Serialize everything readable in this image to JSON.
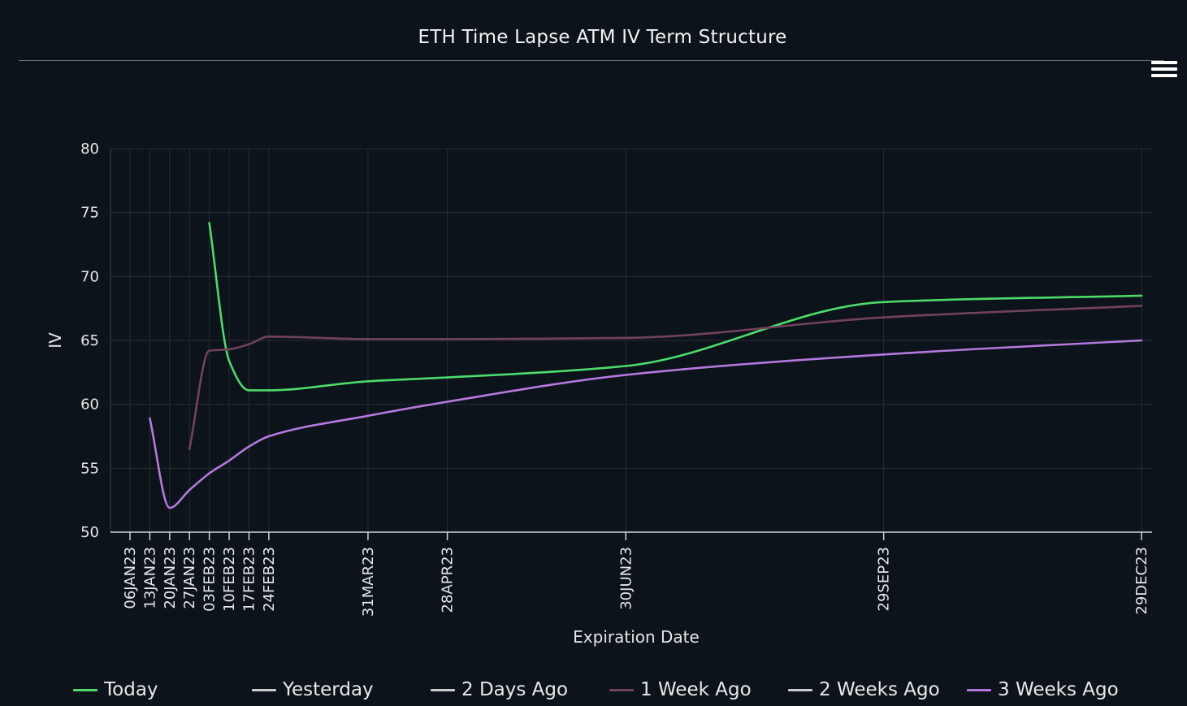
{
  "chart_data": {
    "type": "line",
    "title": "ETH Time Lapse ATM IV Term Structure",
    "xlabel": "Expiration Date",
    "ylabel": "IV",
    "ylim": [
      50,
      80
    ],
    "yticks": [
      50,
      55,
      60,
      65,
      70,
      75,
      80
    ],
    "x": [
      "06JAN23",
      "13JAN23",
      "20JAN23",
      "27JAN23",
      "03FEB23",
      "10FEB23",
      "17FEB23",
      "24FEB23",
      "31MAR23",
      "28APR23",
      "30JUN23",
      "29SEP23",
      "29DEC23"
    ],
    "x_days": [
      0,
      7,
      14,
      21,
      28,
      35,
      42,
      49,
      84,
      112,
      175,
      266,
      357
    ],
    "grid": true,
    "legend_position": "bottom",
    "series": [
      {
        "name": "Today",
        "color": "#4ddb6a",
        "values": [
          null,
          null,
          null,
          null,
          74.2,
          63.4,
          61.1,
          61.1,
          61.8,
          62.1,
          63.0,
          68.0,
          68.5
        ]
      },
      {
        "name": "Yesterday",
        "color": "#cccccc",
        "values": [
          null,
          null,
          null,
          null,
          null,
          null,
          null,
          null,
          null,
          null,
          null,
          null,
          null
        ]
      },
      {
        "name": "2 Days Ago",
        "color": "#cccccc",
        "values": [
          null,
          null,
          null,
          null,
          null,
          null,
          null,
          null,
          null,
          null,
          null,
          null,
          null
        ]
      },
      {
        "name": "1 Week Ago",
        "color": "#74415d",
        "values": [
          null,
          null,
          null,
          56.5,
          64.2,
          64.3,
          64.7,
          65.3,
          65.1,
          65.1,
          65.2,
          66.8,
          67.7
        ]
      },
      {
        "name": "2 Weeks Ago",
        "color": "#cccccc",
        "values": [
          null,
          null,
          null,
          null,
          null,
          null,
          null,
          null,
          null,
          null,
          null,
          null,
          null
        ]
      },
      {
        "name": "3 Weeks Ago",
        "color": "#b678e0",
        "values": [
          null,
          58.9,
          51.9,
          53.3,
          54.6,
          55.6,
          56.7,
          57.5,
          59.1,
          60.2,
          62.3,
          63.9,
          65.0
        ]
      }
    ]
  }
}
